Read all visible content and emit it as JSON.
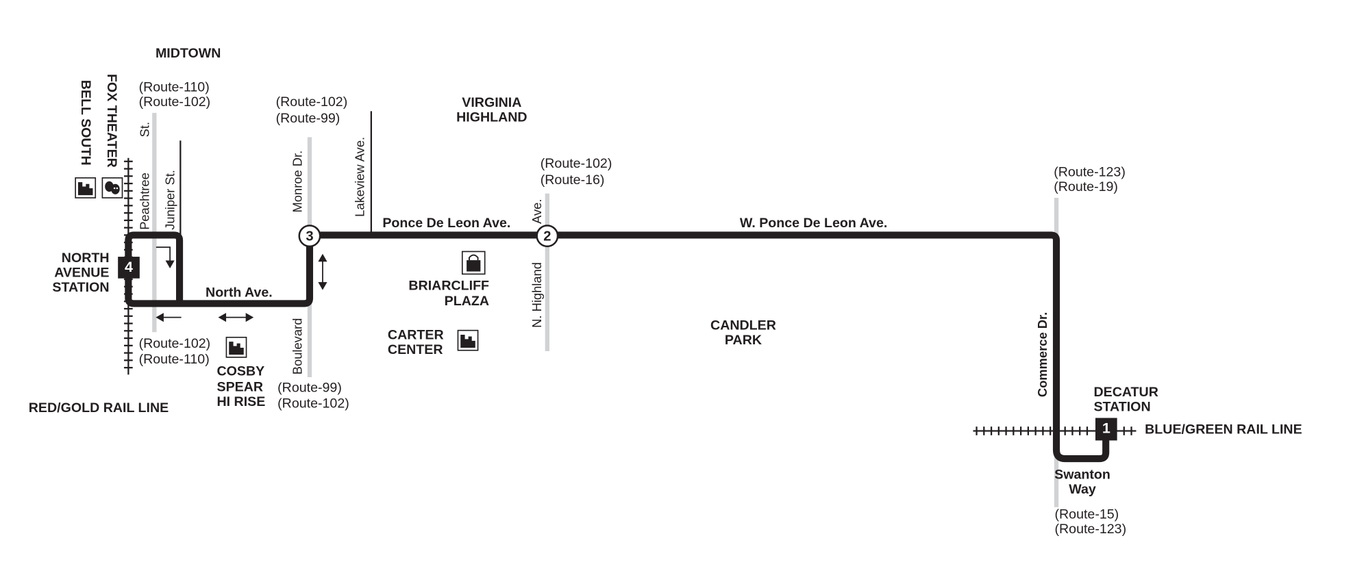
{
  "colors": {
    "route": "#231f20",
    "cross_street": "#d1d2d4",
    "background": "#ffffff"
  },
  "neighborhoods": {
    "midtown": "MIDTOWN",
    "virginia_highland": [
      "VIRGINIA",
      "HIGHLAND"
    ],
    "candler_park": [
      "CANDLER",
      "PARK"
    ]
  },
  "landmarks": {
    "bell_south": {
      "label": "BELL SOUTH",
      "icon": "building-icon"
    },
    "fox_theater": {
      "label": "FOX THEATER",
      "icon": "theater-masks-icon"
    },
    "briarcliff_plaza": {
      "label": [
        "BRIARCLIFF",
        "PLAZA"
      ],
      "icon": "shopping-bag-icon"
    },
    "carter_center": {
      "label": [
        "CARTER",
        "CENTER"
      ],
      "icon": "building-icon"
    },
    "cosby_spear": {
      "label": [
        "COSBY",
        "SPEAR",
        "HI RISE"
      ],
      "icon": "building-icon"
    }
  },
  "streets": {
    "peachtree": "Peachtree",
    "peachtree_st": "St.",
    "juniper": "Juniper St.",
    "monroe": "Monroe Dr.",
    "boulevard": "Boulevard",
    "lakeview": "Lakeview Ave.",
    "highland": "N. Highland",
    "highland_ave": "Ave.",
    "commerce": "Commerce Dr.",
    "ponce": "Ponce De Leon Ave.",
    "w_ponce": "W. Ponce De Leon Ave.",
    "north_ave": "North Ave.",
    "swanton": [
      "Swanton",
      "Way"
    ]
  },
  "connections": {
    "peachtree_north": [
      "(Route-110)",
      "(Route-102)"
    ],
    "peachtree_south": [
      "(Route-102)",
      "(Route-110)"
    ],
    "monroe_north": [
      "(Route-102)",
      "(Route-99)"
    ],
    "boulevard_south": [
      "(Route-99)",
      "(Route-102)"
    ],
    "highland_north": [
      "(Route-102)",
      "(Route-16)"
    ],
    "commerce_north": [
      "(Route-123)",
      "(Route-19)"
    ],
    "commerce_south": [
      "(Route-15)",
      "(Route-123)"
    ]
  },
  "stations": {
    "north_avenue": {
      "number": "4",
      "label": [
        "NORTH",
        "AVENUE",
        "STATION"
      ]
    },
    "decatur": {
      "number": "1",
      "label": [
        "DECATUR",
        "STATION"
      ]
    }
  },
  "timepoints": {
    "ponce_monroe": "3",
    "ponce_highland": "2"
  },
  "rail_lines": {
    "red_gold": "RED/GOLD RAIL LINE",
    "blue_green": "BLUE/GREEN RAIL LINE"
  }
}
